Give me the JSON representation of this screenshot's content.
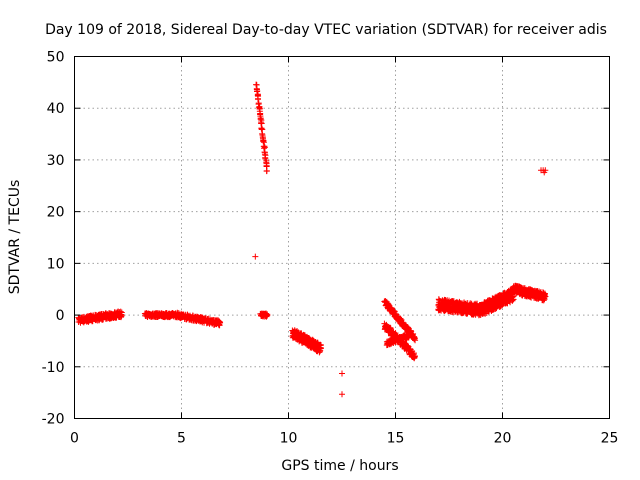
{
  "chart_data": {
    "type": "scatter",
    "title": "Day 109 of 2018, Sidereal Day-to-day VTEC variation (SDTVAR) for receiver adis",
    "xlabel": "GPS time / hours",
    "ylabel": "SDTVAR / TECUs",
    "xlim": [
      0,
      25
    ],
    "ylim": [
      -20,
      50
    ],
    "xticks": [
      0,
      5,
      10,
      15,
      20,
      25
    ],
    "yticks": [
      -20,
      -10,
      0,
      10,
      20,
      30,
      40,
      50
    ],
    "grid": true,
    "marker": "+",
    "color": "#ff0000",
    "series": [
      {
        "name": "SDTVAR",
        "segments": [
          {
            "x": [
              0.2,
              2.2
            ],
            "y": [
              -1.0,
              0.2
            ],
            "band": 1.2
          },
          {
            "x": [
              3.3,
              4.8
            ],
            "y": [
              0.0,
              0.0
            ],
            "band": 0.8
          },
          {
            "x": [
              4.8,
              6.8
            ],
            "y": [
              0.0,
              -1.6
            ],
            "band": 1.0
          },
          {
            "x": [
              8.5,
              9.0
            ],
            "y": [
              44.5,
              28.0
            ],
            "band": 0.6
          },
          {
            "x": [
              8.7,
              9.0
            ],
            "y": [
              0.0,
              0.0
            ],
            "band": 0.6
          },
          {
            "x": [
              10.2,
              11.5
            ],
            "y": [
              -3.5,
              -6.5
            ],
            "band": 1.8
          },
          {
            "x": [
              14.5,
              15.9
            ],
            "y": [
              2.5,
              -4.5
            ],
            "band": 1.0
          },
          {
            "x": [
              14.5,
              15.9
            ],
            "y": [
              -2.0,
              -8.0
            ],
            "band": 1.4
          },
          {
            "x": [
              14.6,
              15.6
            ],
            "y": [
              -5.5,
              -4.0
            ],
            "band": 0.8
          },
          {
            "x": [
              17.0,
              19.0
            ],
            "y": [
              2.0,
              1.0
            ],
            "band": 2.2
          },
          {
            "x": [
              19.0,
              20.5
            ],
            "y": [
              1.0,
              4.0
            ],
            "band": 2.4
          },
          {
            "x": [
              20.5,
              22.0
            ],
            "y": [
              5.0,
              3.5
            ],
            "band": 1.6
          }
        ],
        "points": [
          {
            "x": 8.45,
            "y": 11.3
          },
          {
            "x": 12.5,
            "y": -11.3
          },
          {
            "x": 12.5,
            "y": -15.3
          },
          {
            "x": 21.8,
            "y": 28.0
          },
          {
            "x": 21.9,
            "y": 28.0
          },
          {
            "x": 22.0,
            "y": 28.0
          },
          {
            "x": 21.95,
            "y": 27.6
          }
        ]
      }
    ]
  }
}
